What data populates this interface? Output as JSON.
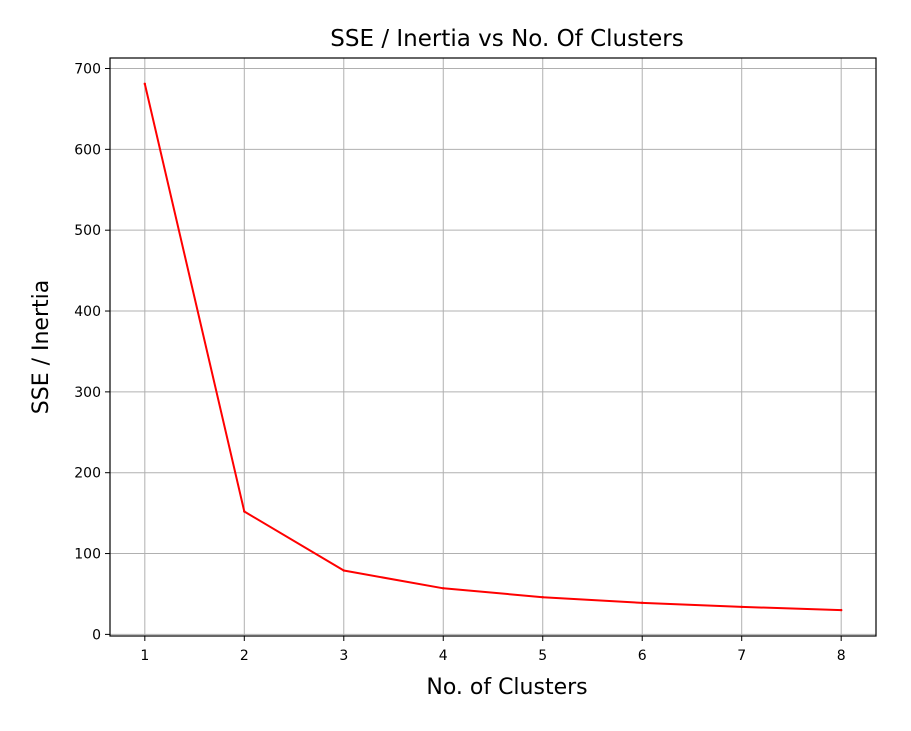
{
  "chart_data": {
    "type": "line",
    "title": "SSE / Inertia vs No. Of Clusters",
    "xlabel": "No. of Clusters",
    "ylabel": "SSE / Inertia",
    "x": [
      1,
      2,
      3,
      4,
      5,
      6,
      7,
      8
    ],
    "series": [
      {
        "values": [
          681,
          152,
          79,
          57,
          46,
          39,
          34,
          30
        ],
        "color": "#ff0000"
      }
    ],
    "x_ticks": [
      "1",
      "2",
      "3",
      "4",
      "5",
      "6",
      "7",
      "8"
    ],
    "y_ticks": [
      "0",
      "100",
      "200",
      "300",
      "400",
      "500",
      "600",
      "700"
    ],
    "xlim": [
      0.65,
      8.35
    ],
    "ylim": [
      -2,
      713
    ],
    "grid": true,
    "grid_color": "#b0b0b0"
  }
}
